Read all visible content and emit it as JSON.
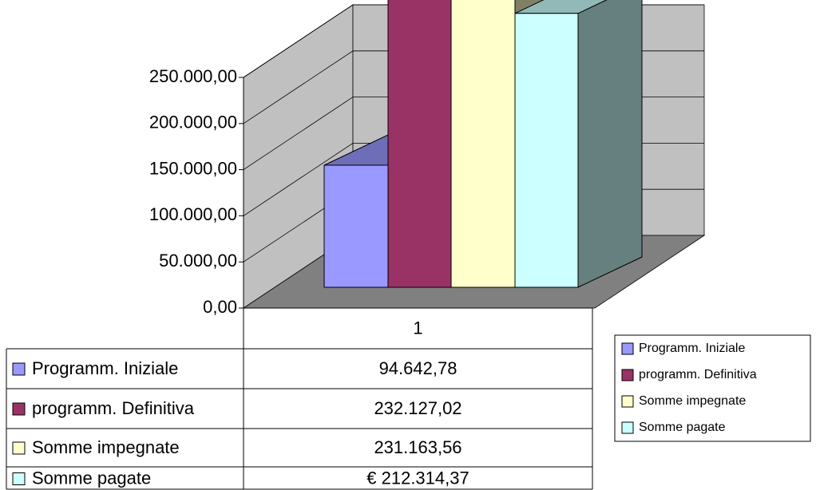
{
  "chart_data": {
    "type": "bar",
    "categories": [
      "1"
    ],
    "series": [
      {
        "name": "Programm. Iniziale",
        "values": [
          94642.78
        ],
        "color": "#9999ff"
      },
      {
        "name": "programm. Definitiva",
        "values": [
          232127.02
        ],
        "color": "#993366"
      },
      {
        "name": "Somme impegnate",
        "values": [
          231163.56
        ],
        "color": "#ffffcc"
      },
      {
        "name": "Somme pagate",
        "values": [
          212314.37
        ],
        "color": "#ccffff"
      }
    ],
    "ylim": [
      0,
      250000
    ],
    "yticks": [
      "0,00",
      "50.000,00",
      "100.000,00",
      "150.000,00",
      "200.000,00",
      "250.000,00"
    ],
    "ytick_values": [
      0,
      50000,
      100000,
      150000,
      200000,
      250000
    ],
    "data_table": {
      "header": "1",
      "rows": [
        {
          "label": "Programm. Iniziale",
          "value": "94.642,78"
        },
        {
          "label": "programm. Definitiva",
          "value": "232.127,02"
        },
        {
          "label": "Somme impegnate",
          "value": "231.163,56"
        },
        {
          "label": "Somme pagate",
          "value": "€ 212.314,37"
        }
      ]
    },
    "legend": {
      "position": "right",
      "items": [
        "Programm. Iniziale",
        "programm. Definitiva",
        "Somme impegnate",
        "Somme pagate"
      ]
    },
    "grid": true,
    "style": "3d-column",
    "wall_color": "#c0c0c0",
    "floor_color": "#808080"
  }
}
